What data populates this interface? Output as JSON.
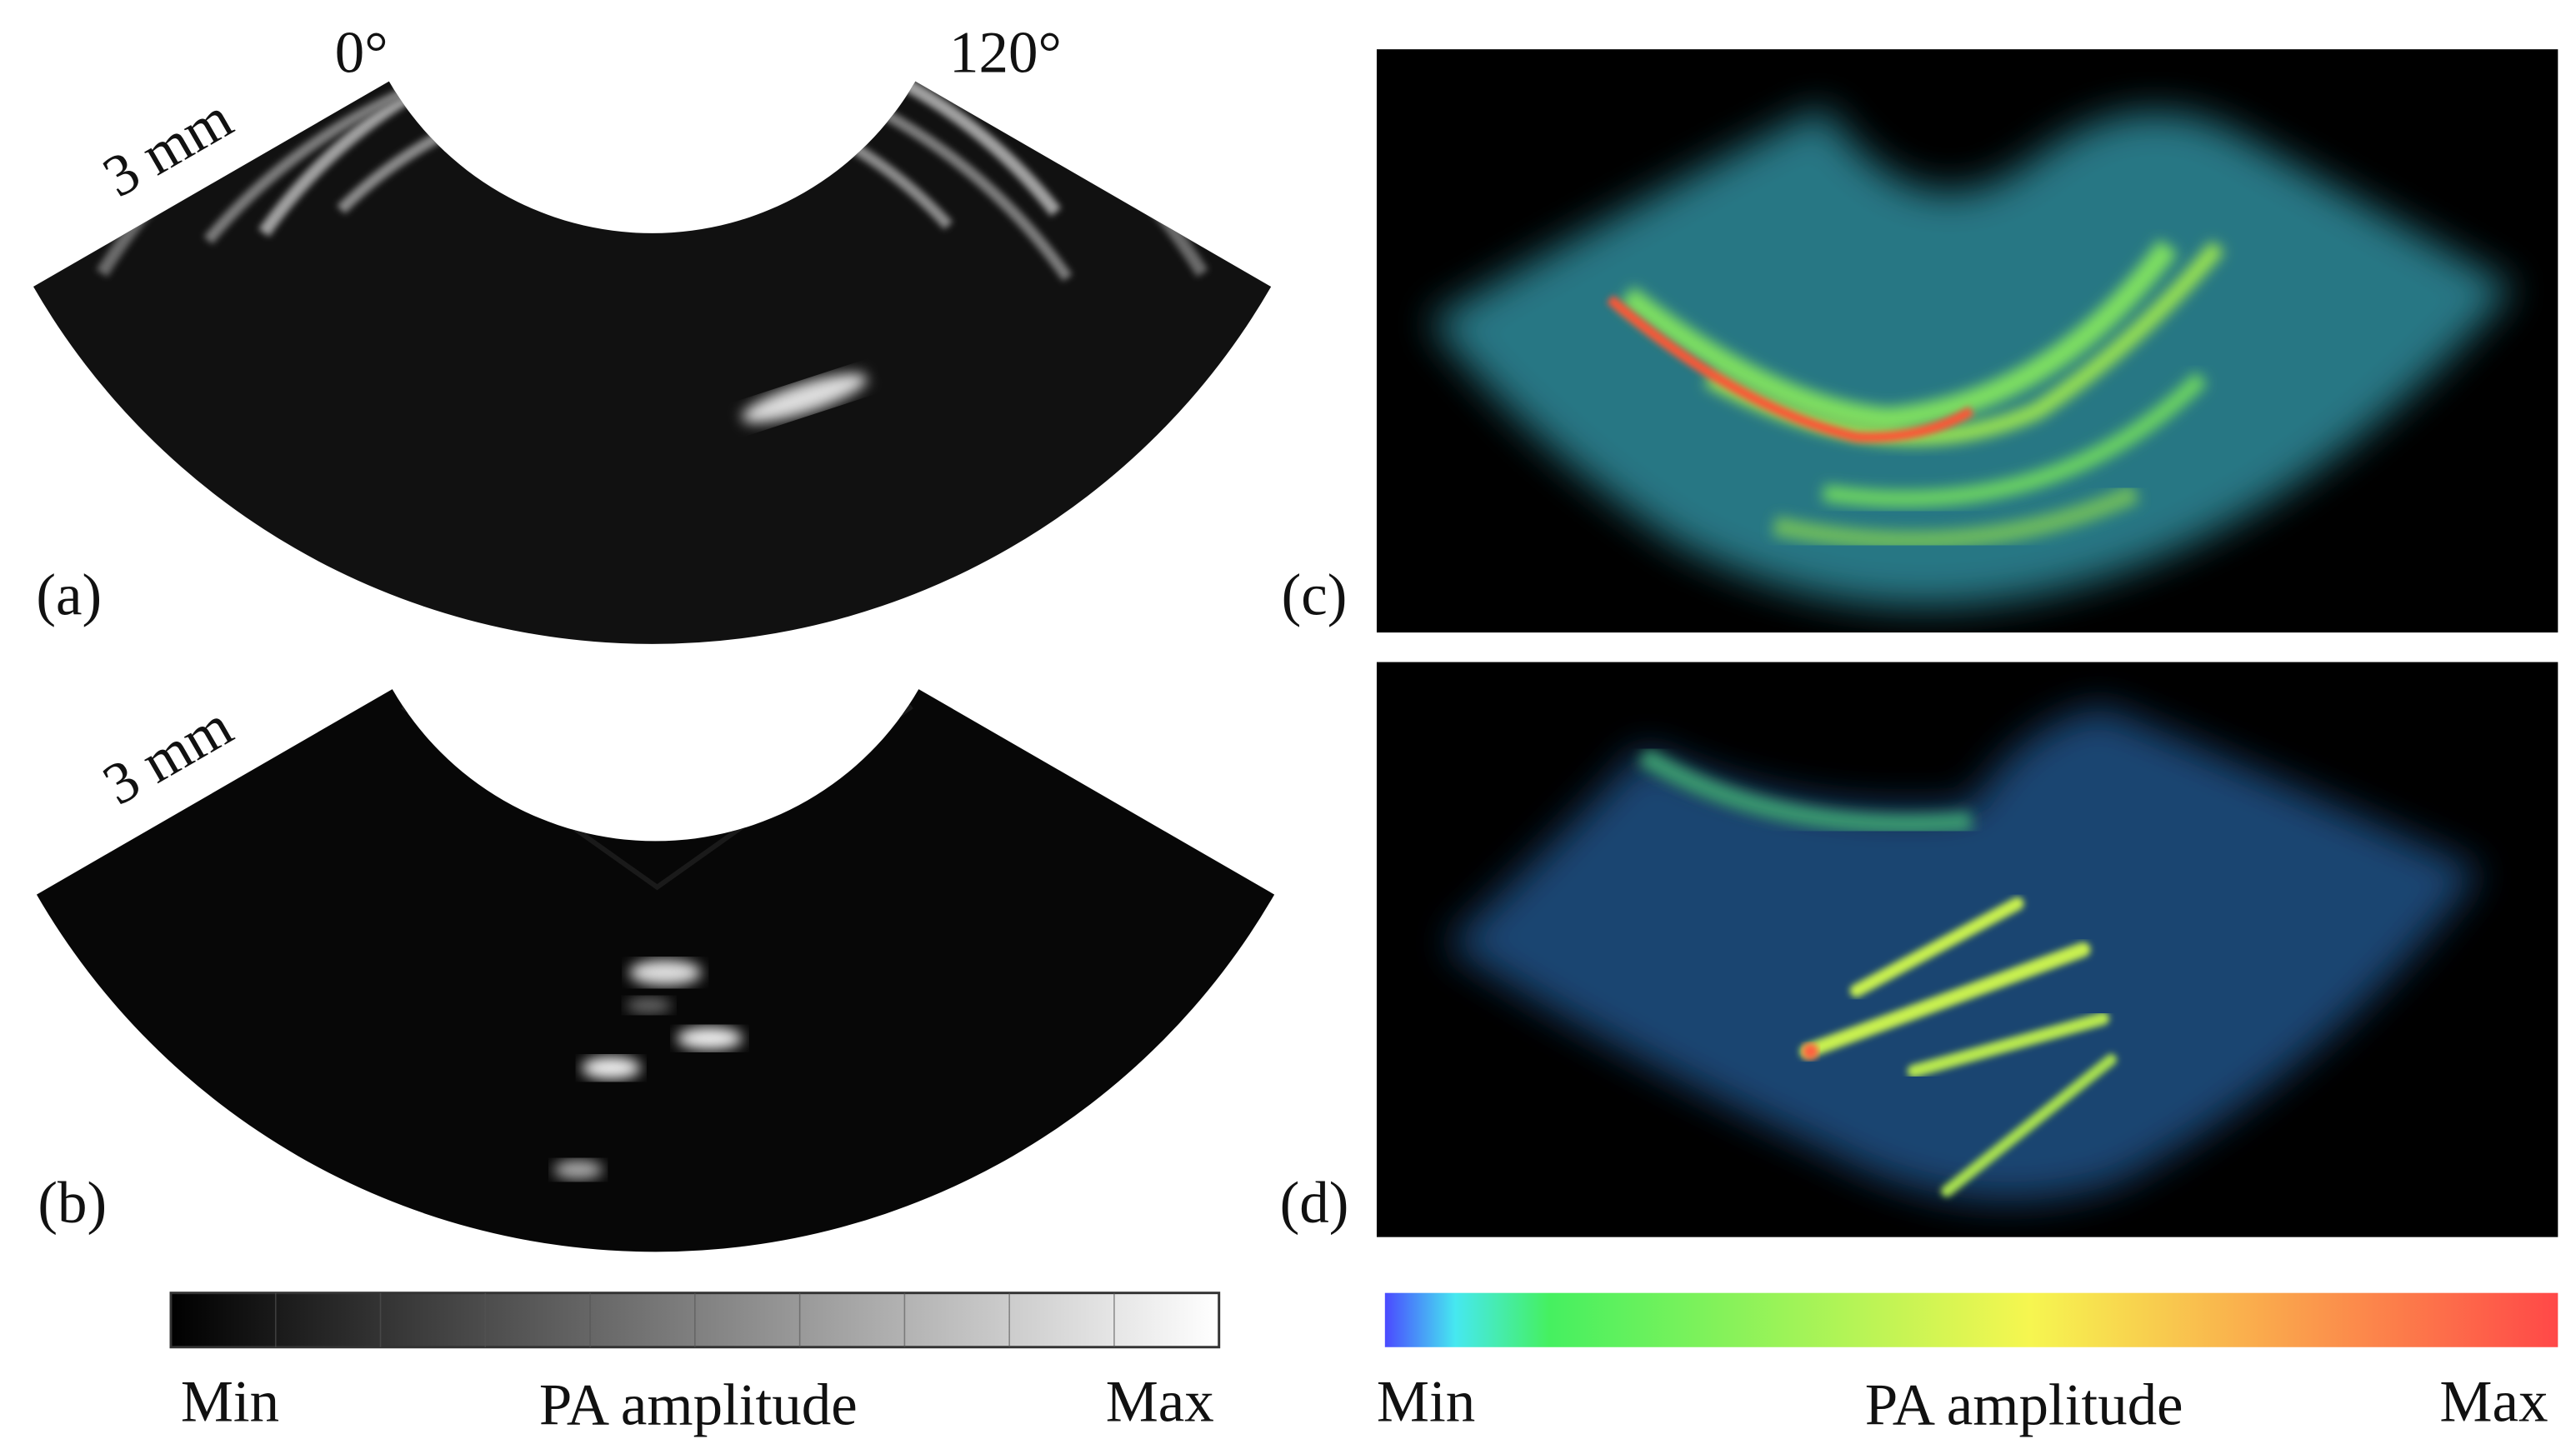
{
  "panels": [
    {
      "label": "(a)",
      "scale_bar": "3 mm",
      "angle_labels": [
        "0°",
        "120°"
      ]
    },
    {
      "label": "(b)",
      "scale_bar": "3 mm"
    },
    {
      "label": "(c)"
    },
    {
      "label": "(d)"
    }
  ],
  "colorbars": [
    {
      "min": "Min",
      "title": "PA amplitude",
      "max": "Max"
    },
    {
      "min": "Min",
      "title": "PA amplitude",
      "max": "Max"
    }
  ]
}
